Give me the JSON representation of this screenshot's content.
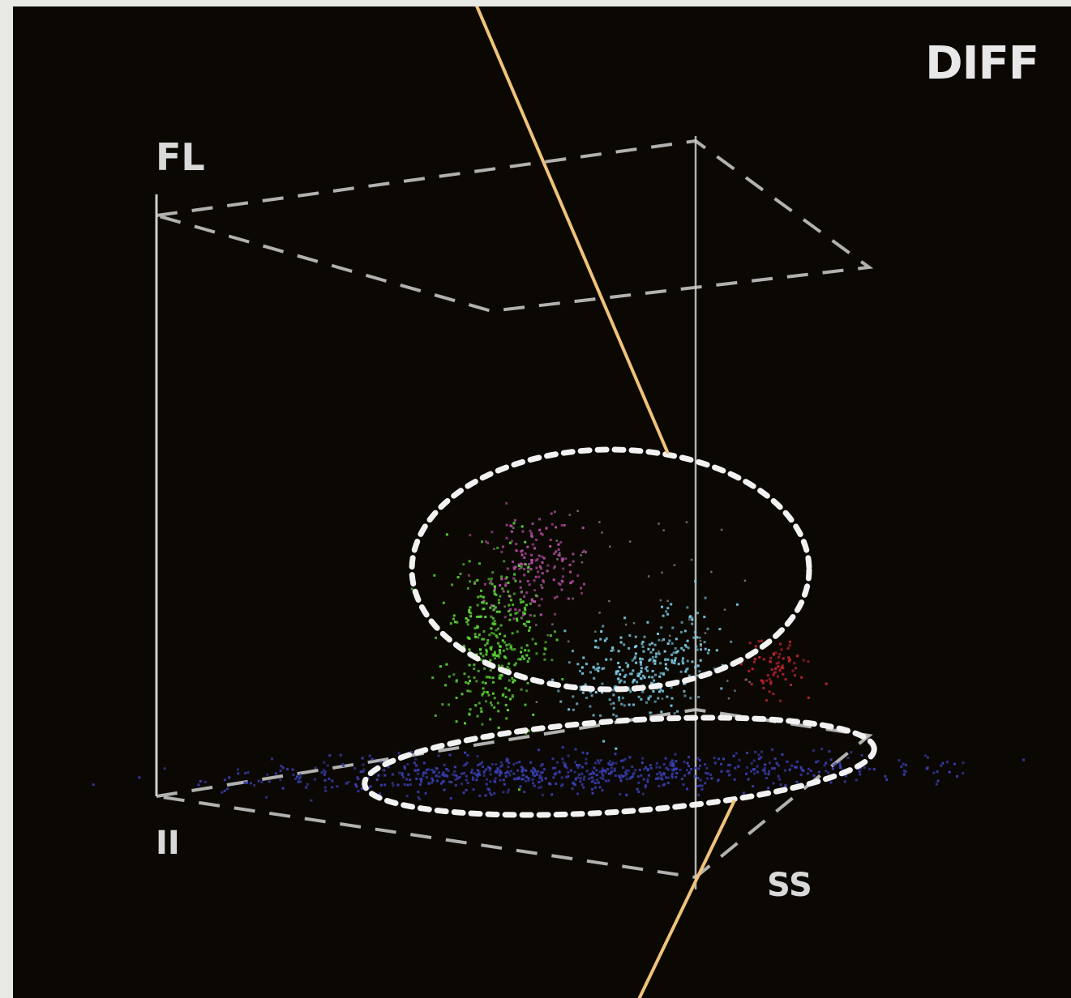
{
  "chart_data": {
    "type": "scatter",
    "title": "",
    "mode_label": "DIFF",
    "axes": {
      "vertical": "FL",
      "origin": "II",
      "depth": "SS"
    },
    "populations": [
      {
        "color": "#b84da6",
        "count": 160
      },
      {
        "color": "#5cd43a",
        "count": 330
      },
      {
        "color": "#7ccbe8",
        "count": 300
      },
      {
        "color": "#c22430",
        "count": 70
      },
      {
        "color": "#3a3fb5",
        "count": 700
      }
    ],
    "gates": 2,
    "gridline_color": "#cfcfcf",
    "cut_line_color": "#f0c27a"
  }
}
